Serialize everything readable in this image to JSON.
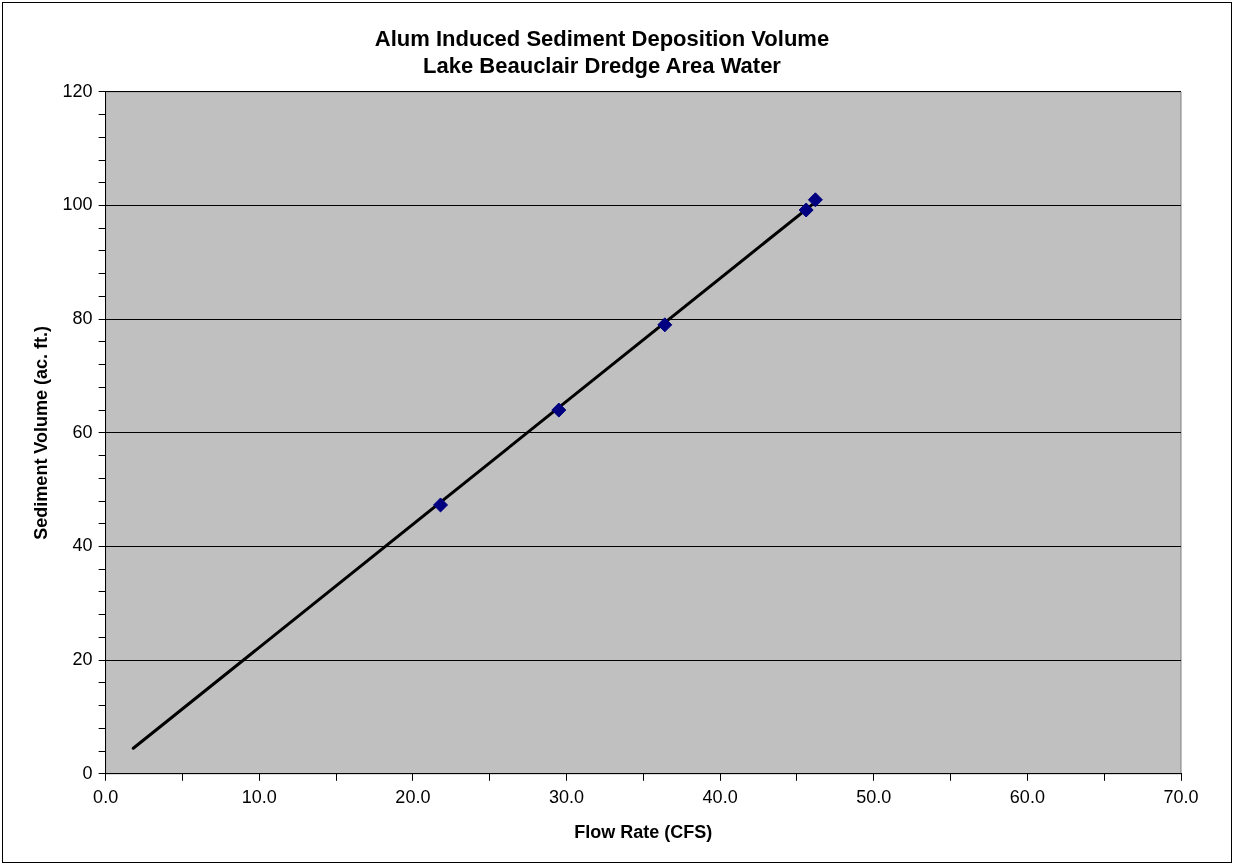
{
  "chart_data": {
    "type": "scatter",
    "title": "Alum Induced Sediment Deposition Volume\nLake Beauclair Dredge Area Water",
    "xlabel": "Flow Rate (CFS)",
    "ylabel": "Sediment Volume (ac. ft.)",
    "series": [
      {
        "color": "#000080",
        "marker": "diamond",
        "x": [
          21.8,
          29.5,
          36.4,
          45.6,
          46.2
        ],
        "values": [
          47.3,
          64,
          79,
          99.2,
          101
        ]
      },
      {
        "type": "line",
        "color": "#000000",
        "marker": "none",
        "line_style": "solid",
        "x": [
          1.8,
          46.2
        ],
        "values": [
          4.5,
          100.6
        ]
      }
    ],
    "xlim": [
      0,
      70
    ],
    "ylim": [
      0,
      120
    ],
    "xticks": [
      {
        "value": 0,
        "label": "0.0"
      },
      {
        "value": 5,
        "label": null
      },
      {
        "value": 10,
        "label": "10.0"
      },
      {
        "value": 15,
        "label": null
      },
      {
        "value": 20,
        "label": "20.0"
      },
      {
        "value": 25,
        "label": null
      },
      {
        "value": 30,
        "label": "30.0"
      },
      {
        "value": 35,
        "label": null
      },
      {
        "value": 40,
        "label": "40.0"
      },
      {
        "value": 45,
        "label": null
      },
      {
        "value": 50,
        "label": "50.0"
      },
      {
        "value": 55,
        "label": null
      },
      {
        "value": 60,
        "label": "60.0"
      },
      {
        "value": 65,
        "label": null
      },
      {
        "value": 70,
        "label": "70.0"
      }
    ],
    "yticks": [
      0,
      {
        "value": 4,
        "label": null
      },
      {
        "value": 8,
        "label": null
      },
      {
        "value": 12,
        "label": null
      },
      {
        "value": 16,
        "label": null
      },
      20,
      {
        "value": 24,
        "label": null
      },
      {
        "value": 28,
        "label": null
      },
      {
        "value": 32,
        "label": null
      },
      {
        "value": 36,
        "label": null
      },
      40,
      {
        "value": 44,
        "label": null
      },
      {
        "value": 48,
        "label": null
      },
      {
        "value": 52,
        "label": null
      },
      {
        "value": 56,
        "label": null
      },
      60,
      {
        "value": 64,
        "label": null
      },
      {
        "value": 68,
        "label": null
      },
      {
        "value": 72,
        "label": null
      },
      {
        "value": 76,
        "label": null
      },
      80,
      {
        "value": 84,
        "label": null
      },
      {
        "value": 88,
        "label": null
      },
      {
        "value": 92,
        "label": null
      },
      {
        "value": 96,
        "label": null
      },
      100,
      {
        "value": 104,
        "label": null
      },
      {
        "value": 108,
        "label": null
      },
      {
        "value": 112,
        "label": null
      },
      {
        "value": 116,
        "label": null
      },
      120
    ],
    "grid": "y",
    "legend": false
  }
}
